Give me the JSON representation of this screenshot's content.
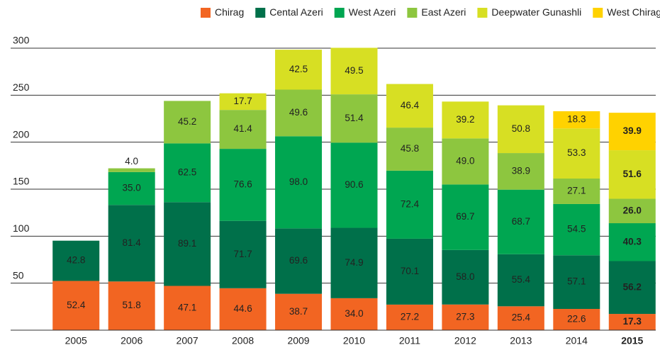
{
  "chart_data": {
    "type": "stacked_bar",
    "categories": [
      "2005",
      "2006",
      "2007",
      "2008",
      "2009",
      "2010",
      "2011",
      "2012",
      "2013",
      "2014",
      "2015"
    ],
    "series": [
      {
        "name": "Chirag",
        "color": "#f26522",
        "values": [
          52.4,
          51.8,
          47.1,
          44.6,
          38.7,
          34.0,
          27.2,
          27.3,
          25.4,
          22.6,
          17.3
        ],
        "value_labels": [
          "52.4",
          "51.8",
          "47.1",
          "44.6",
          "38.7",
          "34.0",
          "27.2",
          "27.3",
          "25.4",
          "22.6",
          "17.3"
        ]
      },
      {
        "name": "Cental Azeri",
        "color": "#00704a",
        "values": [
          42.8,
          81.4,
          89.1,
          71.7,
          69.6,
          74.9,
          70.1,
          58.0,
          55.4,
          57.1,
          56.2
        ],
        "value_labels": [
          "42.8",
          "81.4",
          "89.1",
          "71.7",
          "69.6",
          "74.9",
          "70.1",
          "58.0",
          "55.4",
          "57.1",
          "56.2"
        ]
      },
      {
        "name": "West Azeri",
        "color": "#00a651",
        "values": [
          null,
          35.0,
          62.5,
          76.6,
          98.0,
          90.6,
          72.4,
          69.7,
          68.7,
          54.5,
          40.3
        ],
        "value_labels": [
          null,
          "35.0",
          "62.5",
          "76.6",
          "98.0",
          "90.6",
          "72.4",
          "69.7",
          "68.7",
          "54.5",
          "40.3"
        ]
      },
      {
        "name": "East Azeri",
        "color": "#8dc63f",
        "values": [
          null,
          4.0,
          45.2,
          41.4,
          49.6,
          51.4,
          45.8,
          49.0,
          38.9,
          27.1,
          26.0
        ],
        "value_labels": [
          null,
          "4.0",
          "45.2",
          "41.4",
          "49.6",
          "51.4",
          "45.8",
          "49.0",
          "38.9",
          "27.1",
          "26.0"
        ]
      },
      {
        "name": "Deepwater Gunashli",
        "color": "#d7df23",
        "values": [
          null,
          null,
          null,
          17.7,
          42.5,
          49.5,
          46.4,
          39.2,
          50.8,
          53.3,
          51.6
        ],
        "value_labels": [
          null,
          null,
          null,
          "17.7",
          "42.5",
          "49.5",
          "46.4",
          "39.2",
          "50.8",
          "53.3",
          "51.6"
        ]
      },
      {
        "name": "West Chirag",
        "color": "#ffd200",
        "values": [
          null,
          null,
          null,
          null,
          null,
          null,
          null,
          null,
          null,
          18.3,
          39.9
        ],
        "value_labels": [
          null,
          null,
          null,
          null,
          null,
          null,
          null,
          null,
          null,
          "18.3",
          "39.9"
        ]
      }
    ],
    "ylim": [
      0,
      300
    ],
    "yticks": [
      50,
      100,
      150,
      200,
      250,
      300
    ],
    "grid": true,
    "legend": "top"
  }
}
